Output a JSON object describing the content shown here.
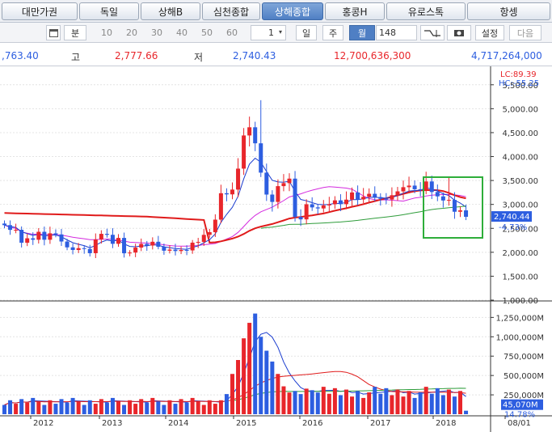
{
  "tabs": [
    {
      "label": "대만가권",
      "active": false
    },
    {
      "label": "독일",
      "active": false
    },
    {
      "label": "상해B",
      "active": false
    },
    {
      "label": "심천종합",
      "active": false
    },
    {
      "label": "상해종합",
      "active": true
    },
    {
      "label": "홍콩H",
      "active": false
    },
    {
      "label": "유로스톡",
      "active": false
    },
    {
      "label": "항셍",
      "active": false
    }
  ],
  "toolbar": {
    "period_label": "분",
    "periods": [
      "10",
      "20",
      "30",
      "40",
      "50",
      "60"
    ],
    "count_value": "1",
    "day_label": "일",
    "week_label": "주",
    "month_label": "월",
    "bars_value": "148",
    "settings_label": "설정",
    "next_label": "다음"
  },
  "prices": {
    "open_value": ",763.40",
    "high_label": "고",
    "high_value": "2,777.66",
    "low_label": "저",
    "low_value": "2,740.43",
    "amount_value": "12,700,636,300",
    "volume_value": "4,717,264,000"
  },
  "price_panel": {
    "lc_label": "LC:89.39",
    "hc_label": "HC:-55.25",
    "last_label": "2,740.44",
    "change_label": "-4.73%",
    "y_ticks": [
      "5,500.00",
      "5,000.00",
      "4,500.00",
      "4,000.00",
      "3,500.00",
      "3,000.00",
      "2,500.00",
      "2,000.00",
      "1,500.00",
      "1,000.00"
    ]
  },
  "volume_panel": {
    "y_ticks": [
      "1,250,000M",
      "1,000,000M",
      "750,000M",
      "500,000M",
      "250,000M"
    ],
    "last_label": "45,070M",
    "change_label": "14.78%"
  },
  "x_axis_labels": [
    "2012",
    "2013",
    "2014",
    "2015",
    "2016",
    "2017",
    "2018",
    "08/01"
  ],
  "colors": {
    "up": "#e8262b",
    "down": "#2d5ee0",
    "ma_short": "#1a3ccf",
    "ma_mid": "#d42adf",
    "ma_long": "#2e9c3a",
    "ma_trend": "#e01b1b",
    "highlight_box": "#2eae3a"
  },
  "chart_data": {
    "type": "candlestick",
    "frequency": "monthly",
    "start_year": 2011,
    "start_month": 8,
    "ylim_price": [
      1000,
      5750
    ],
    "ylim_volume": [
      0,
      1400000
    ],
    "close": [
      2567,
      2468,
      2470,
      2199,
      2292,
      2262,
      2428,
      2262,
      2396,
      2373,
      2225,
      2103,
      2048,
      2086,
      2069,
      1981,
      2269,
      2385,
      2365,
      2177,
      2300,
      1979,
      1994,
      2098,
      2174,
      2141,
      2220,
      2115,
      2033,
      2056,
      2026,
      2048,
      2039,
      2201,
      2217,
      2364,
      2420,
      2682,
      3234,
      3210,
      3310,
      3748,
      4441,
      4612,
      4277,
      3664,
      3206,
      3052,
      3382,
      3445,
      3539,
      2738,
      2688,
      3003,
      2938,
      2916,
      2979,
      3004,
      3085,
      3005,
      3100,
      3250,
      3104,
      3159,
      3222,
      3154,
      3117,
      3102,
      3192,
      3273,
      3360,
      3393,
      3317,
      3307,
      3480,
      3259,
      3168,
      3082,
      3095,
      2847,
      2876,
      2741
    ]
  }
}
